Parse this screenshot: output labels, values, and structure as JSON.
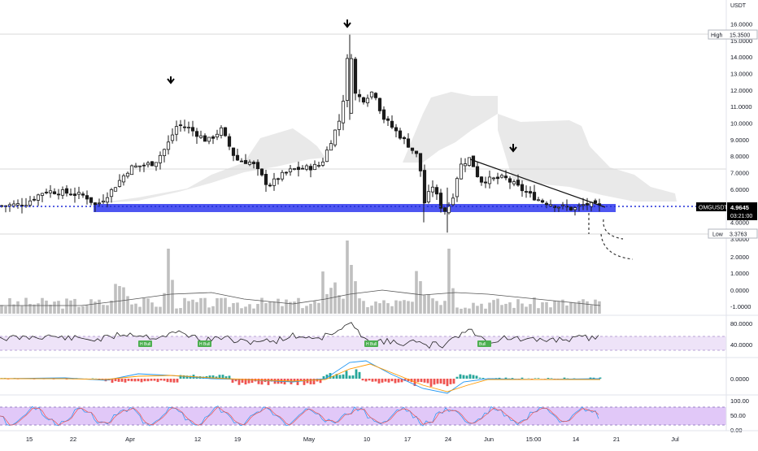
{
  "chart_data": {
    "type": "candlestick",
    "symbol": "OMGUSDT",
    "currency_label": "USDT",
    "price_axis_ticks": [
      "16.0000",
      "15.0000",
      "14.0000",
      "13.0000",
      "12.0000",
      "11.0000",
      "10.0000",
      "9.0000",
      "8.0000",
      "7.0000",
      "6.0000",
      "5.0000",
      "4.0000",
      "3.0000"
    ],
    "x_axis_labels": [
      "15",
      "22",
      "Apr",
      "12",
      "19",
      "May",
      "10",
      "17",
      "24",
      "Jun",
      "15:00",
      "14",
      "21",
      "Jul"
    ],
    "high_label": "High",
    "high_value": "15.3500",
    "low_label": "Low",
    "low_value": "3.3763",
    "current_price": "4.9645",
    "countdown": "03:21:00",
    "support_price": 4.9,
    "down_arrow_annotations": 3,
    "rsi_labels": [
      "H Bull",
      "H Bull",
      "H Bull",
      "Bull"
    ],
    "volume_axis_ticks": [
      "2.0000",
      "1.0000",
      "0.0000",
      "-1.0000"
    ],
    "rsi_axis_ticks": [
      "80.0000",
      "40.0000"
    ],
    "macd_axis_ticks": [
      "0.0000"
    ],
    "stoch_axis_ticks": [
      "100.00",
      "50.00",
      "0.00"
    ],
    "colors": {
      "up_body": "#ffffff",
      "down_body": "#1b1b1b",
      "candle_outline": "#1b1b1b",
      "support_band": "#3b44f0",
      "ichimoku_cloud": "#e9e9e9",
      "volume_bar": "#bfbfbf",
      "rsi_band": "#eee3f8",
      "rsi_label": "#4caf50",
      "macd_up": "#26a69a",
      "macd_down": "#ef5350",
      "macd_line": "#2196f3",
      "signal_line": "#ff9800",
      "stoch_band": "#e1c8f8",
      "stoch_k": "#2196f3",
      "stoch_d": "#ef5350",
      "price_tag": "#000000"
    }
  }
}
